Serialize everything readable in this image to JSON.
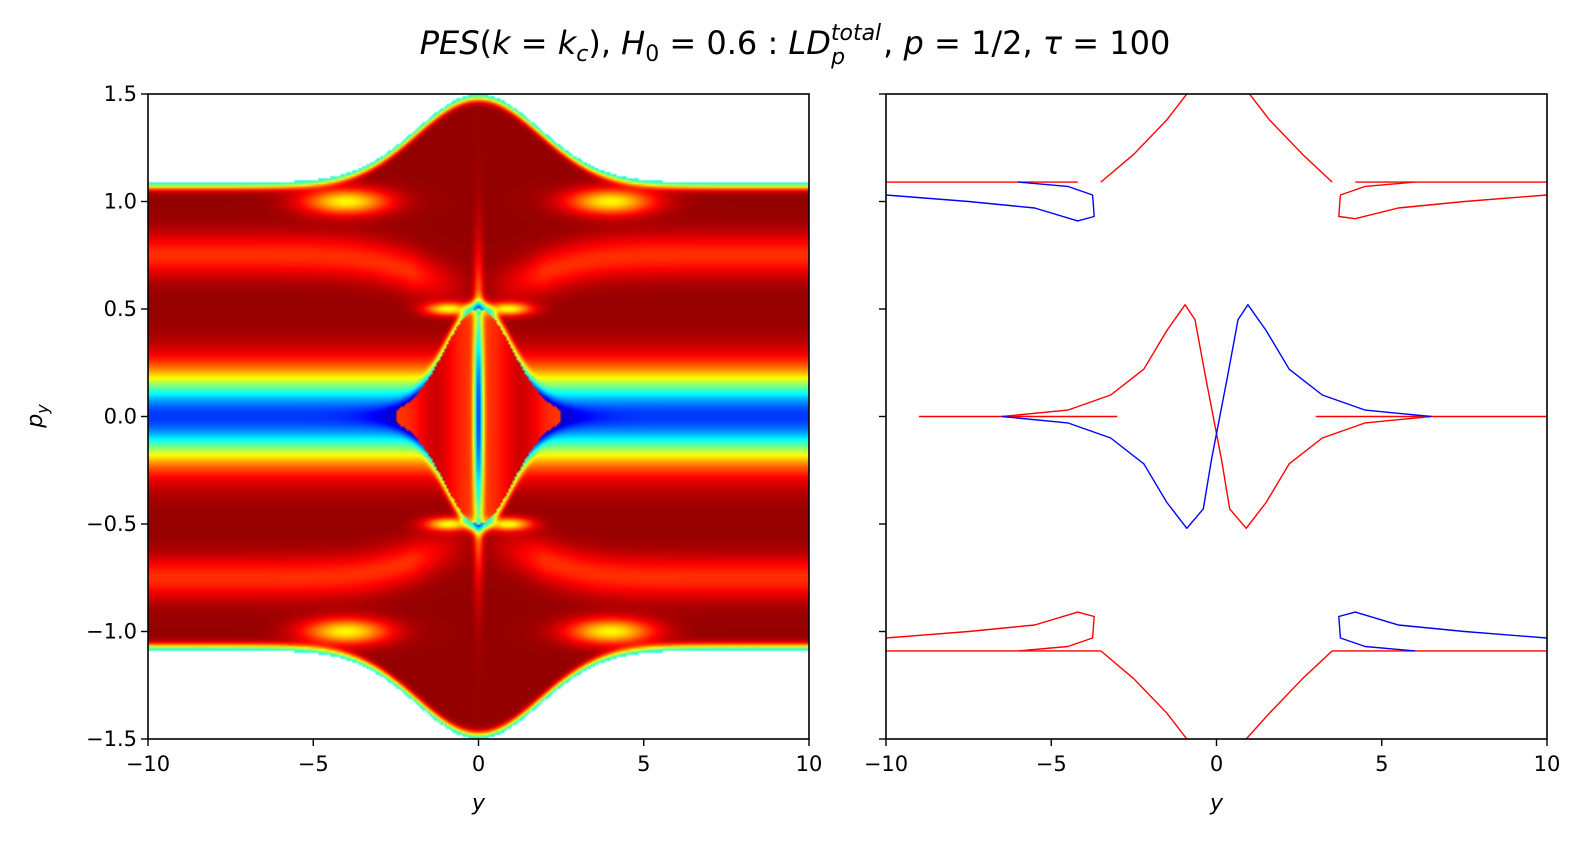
{
  "chart_data": [
    {
      "type": "heatmap",
      "title": "PES(k = k_c), H_0 = 0.6 : LD_p^total, p = 1/2, τ = 100",
      "xlabel": "y",
      "ylabel": "p_y",
      "xlim": [
        -10,
        10
      ],
      "ylim": [
        -1.5,
        1.5
      ],
      "xticks": [
        -10,
        -5,
        0,
        5,
        10
      ],
      "yticks": [
        -1.5,
        -1.0,
        -0.5,
        0.0,
        0.5,
        1.0,
        1.5
      ],
      "xtick_labels": [
        "−10",
        "−5",
        "0",
        "5",
        "10"
      ],
      "ytick_labels": [
        "−1.5",
        "−1.0",
        "−0.5",
        "0.0",
        "0.5",
        "1.0",
        "1.5"
      ],
      "colormap": "jet",
      "energy_boundary_py_at_large_y": 1.09,
      "energy_boundary_py_at_y0": 1.5,
      "grid": false
    },
    {
      "type": "line",
      "xlabel": "y",
      "xlim": [
        -10,
        10
      ],
      "ylim": [
        -1.5,
        1.5
      ],
      "xticks": [
        -10,
        -5,
        0,
        5,
        10
      ],
      "xtick_labels": [
        "−10",
        "−5",
        "0",
        "5",
        "10"
      ],
      "grid": false,
      "series": [
        {
          "color": "#ff0000",
          "segments": [
            [
              [
                -10,
                1.09
              ],
              [
                -4.2,
                1.09
              ]
            ],
            [
              [
                4.2,
                1.09
              ],
              [
                10,
                1.09
              ]
            ],
            [
              [
                -9,
                0.0
              ],
              [
                -3,
                0.0
              ]
            ],
            [
              [
                3,
                0.0
              ],
              [
                10,
                0.0
              ]
            ],
            [
              [
                -10,
                -1.09
              ],
              [
                -3.5,
                -1.09
              ]
            ],
            [
              [
                3.5,
                -1.09
              ],
              [
                10,
                -1.09
              ]
            ],
            [
              [
                -3.5,
                1.09
              ],
              [
                -2.5,
                1.22
              ],
              [
                -1.5,
                1.38
              ],
              [
                -0.9,
                1.5
              ]
            ],
            [
              [
                1.0,
                1.5
              ],
              [
                1.6,
                1.38
              ],
              [
                2.6,
                1.22
              ],
              [
                3.5,
                1.09
              ]
            ],
            [
              [
                -3.5,
                -1.09
              ],
              [
                -2.5,
                -1.22
              ],
              [
                -1.5,
                -1.38
              ],
              [
                -0.9,
                -1.5
              ]
            ],
            [
              [
                0.9,
                -1.5
              ],
              [
                1.6,
                -1.38
              ],
              [
                2.6,
                -1.22
              ],
              [
                3.5,
                -1.09
              ]
            ],
            [
              [
                10,
                1.03
              ],
              [
                7.5,
                1.0
              ],
              [
                5.5,
                0.97
              ],
              [
                4.2,
                0.92
              ],
              [
                3.7,
                0.93
              ],
              [
                3.75,
                1.03
              ],
              [
                4.5,
                1.07
              ],
              [
                6,
                1.09
              ]
            ],
            [
              [
                -10,
                -1.03
              ],
              [
                -7.5,
                -1.0
              ],
              [
                -5.5,
                -0.97
              ],
              [
                -4.2,
                -0.91
              ],
              [
                -3.7,
                -0.93
              ],
              [
                -3.75,
                -1.03
              ],
              [
                -4.5,
                -1.07
              ],
              [
                -6,
                -1.09
              ]
            ],
            [
              [
                -6.5,
                0.0
              ],
              [
                -4.5,
                0.03
              ],
              [
                -3.2,
                0.1
              ],
              [
                -2.2,
                0.22
              ],
              [
                -1.5,
                0.4
              ],
              [
                -0.95,
                0.52
              ],
              [
                -0.65,
                0.45
              ],
              [
                -0.35,
                0.2
              ],
              [
                -0.1,
                0.0
              ],
              [
                0.15,
                -0.2
              ],
              [
                0.4,
                -0.43
              ],
              [
                0.9,
                -0.52
              ],
              [
                1.5,
                -0.4
              ],
              [
                2.2,
                -0.22
              ],
              [
                3.2,
                -0.1
              ],
              [
                4.5,
                -0.03
              ],
              [
                6.5,
                0.0
              ]
            ]
          ]
        },
        {
          "color": "#0000ff",
          "segments": [
            [
              [
                -10,
                1.03
              ],
              [
                -7.5,
                1.0
              ],
              [
                -5.5,
                0.97
              ],
              [
                -4.2,
                0.91
              ],
              [
                -3.7,
                0.93
              ],
              [
                -3.75,
                1.03
              ],
              [
                -4.5,
                1.07
              ],
              [
                -6,
                1.09
              ]
            ],
            [
              [
                10,
                -1.03
              ],
              [
                7.5,
                -1.0
              ],
              [
                5.5,
                -0.97
              ],
              [
                4.2,
                -0.91
              ],
              [
                3.7,
                -0.93
              ],
              [
                3.75,
                -1.03
              ],
              [
                4.5,
                -1.07
              ],
              [
                6,
                -1.09
              ]
            ],
            [
              [
                6.5,
                0.0
              ],
              [
                4.5,
                0.03
              ],
              [
                3.2,
                0.1
              ],
              [
                2.2,
                0.22
              ],
              [
                1.5,
                0.4
              ],
              [
                0.95,
                0.52
              ],
              [
                0.65,
                0.45
              ],
              [
                0.35,
                0.2
              ],
              [
                0.1,
                0.0
              ],
              [
                -0.15,
                -0.2
              ],
              [
                -0.4,
                -0.43
              ],
              [
                -0.9,
                -0.52
              ],
              [
                -1.5,
                -0.4
              ],
              [
                -2.2,
                -0.22
              ],
              [
                -3.2,
                -0.1
              ],
              [
                -4.5,
                -0.03
              ],
              [
                -6.5,
                0.0
              ]
            ]
          ]
        }
      ]
    }
  ]
}
